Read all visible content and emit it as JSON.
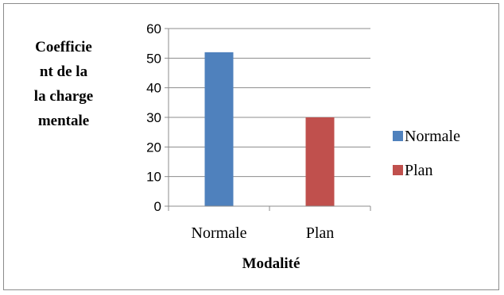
{
  "chart_data": {
    "type": "bar",
    "categories": [
      "Normale",
      "Plan"
    ],
    "series": [
      {
        "name": "Normale",
        "values": [
          52,
          null
        ],
        "color": "#4f81bd"
      },
      {
        "name": "Plan",
        "values": [
          null,
          30
        ],
        "color": "#c0504d"
      }
    ],
    "ylabel_lines": [
      "Coefficie",
      "nt de la",
      "la charge",
      "mentale"
    ],
    "xlabel": "Modalité",
    "ylim": [
      0,
      60
    ],
    "yticks": [
      0,
      10,
      20,
      30,
      40,
      50,
      60
    ],
    "grid": true,
    "legend_position": "right"
  }
}
